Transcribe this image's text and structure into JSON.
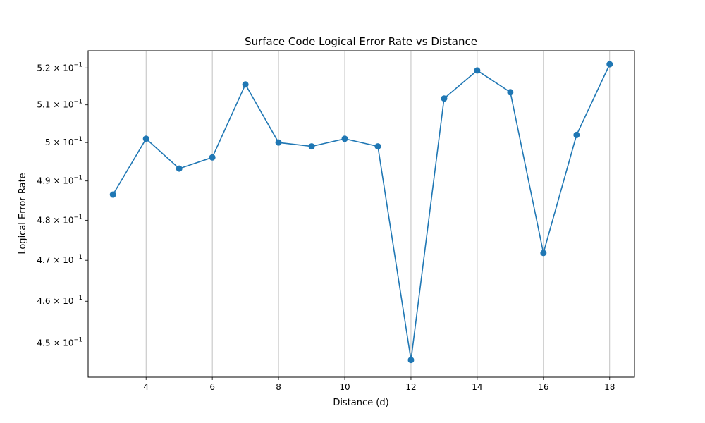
{
  "chart_data": {
    "type": "line",
    "title": "Surface Code Logical Error Rate vs Distance",
    "xlabel": "Distance (d)",
    "ylabel": "Logical Error Rate",
    "x": [
      3,
      4,
      5,
      6,
      7,
      8,
      9,
      10,
      11,
      12,
      13,
      14,
      15,
      16,
      17,
      18
    ],
    "y": [
      0.4865,
      0.501,
      0.4932,
      0.4961,
      0.5155,
      0.5,
      0.499,
      0.501,
      0.499,
      0.446,
      0.5117,
      0.5193,
      0.5134,
      0.4718,
      0.502,
      0.521
    ],
    "xlim": [
      2.25,
      18.75
    ],
    "ylim": [
      0.442,
      0.5247
    ],
    "y_scale": "log",
    "x_ticks": [
      4,
      6,
      8,
      10,
      12,
      14,
      16,
      18
    ],
    "y_ticks": [
      {
        "value": 0.45,
        "mantissa": "4.5",
        "base": "10",
        "exp": "−1"
      },
      {
        "value": 0.46,
        "mantissa": "4.6",
        "base": "10",
        "exp": "−1"
      },
      {
        "value": 0.47,
        "mantissa": "4.7",
        "base": "10",
        "exp": "−1"
      },
      {
        "value": 0.48,
        "mantissa": "4.8",
        "base": "10",
        "exp": "−1"
      },
      {
        "value": 0.49,
        "mantissa": "4.9",
        "base": "10",
        "exp": "−1"
      },
      {
        "value": 0.5,
        "mantissa": "5",
        "base": "10",
        "exp": "−1"
      },
      {
        "value": 0.51,
        "mantissa": "5.1",
        "base": "10",
        "exp": "−1"
      },
      {
        "value": 0.52,
        "mantissa": "5.2",
        "base": "10",
        "exp": "−1"
      }
    ],
    "grid": "x-major",
    "line_color": "#1f77b4",
    "marker": "circle"
  }
}
